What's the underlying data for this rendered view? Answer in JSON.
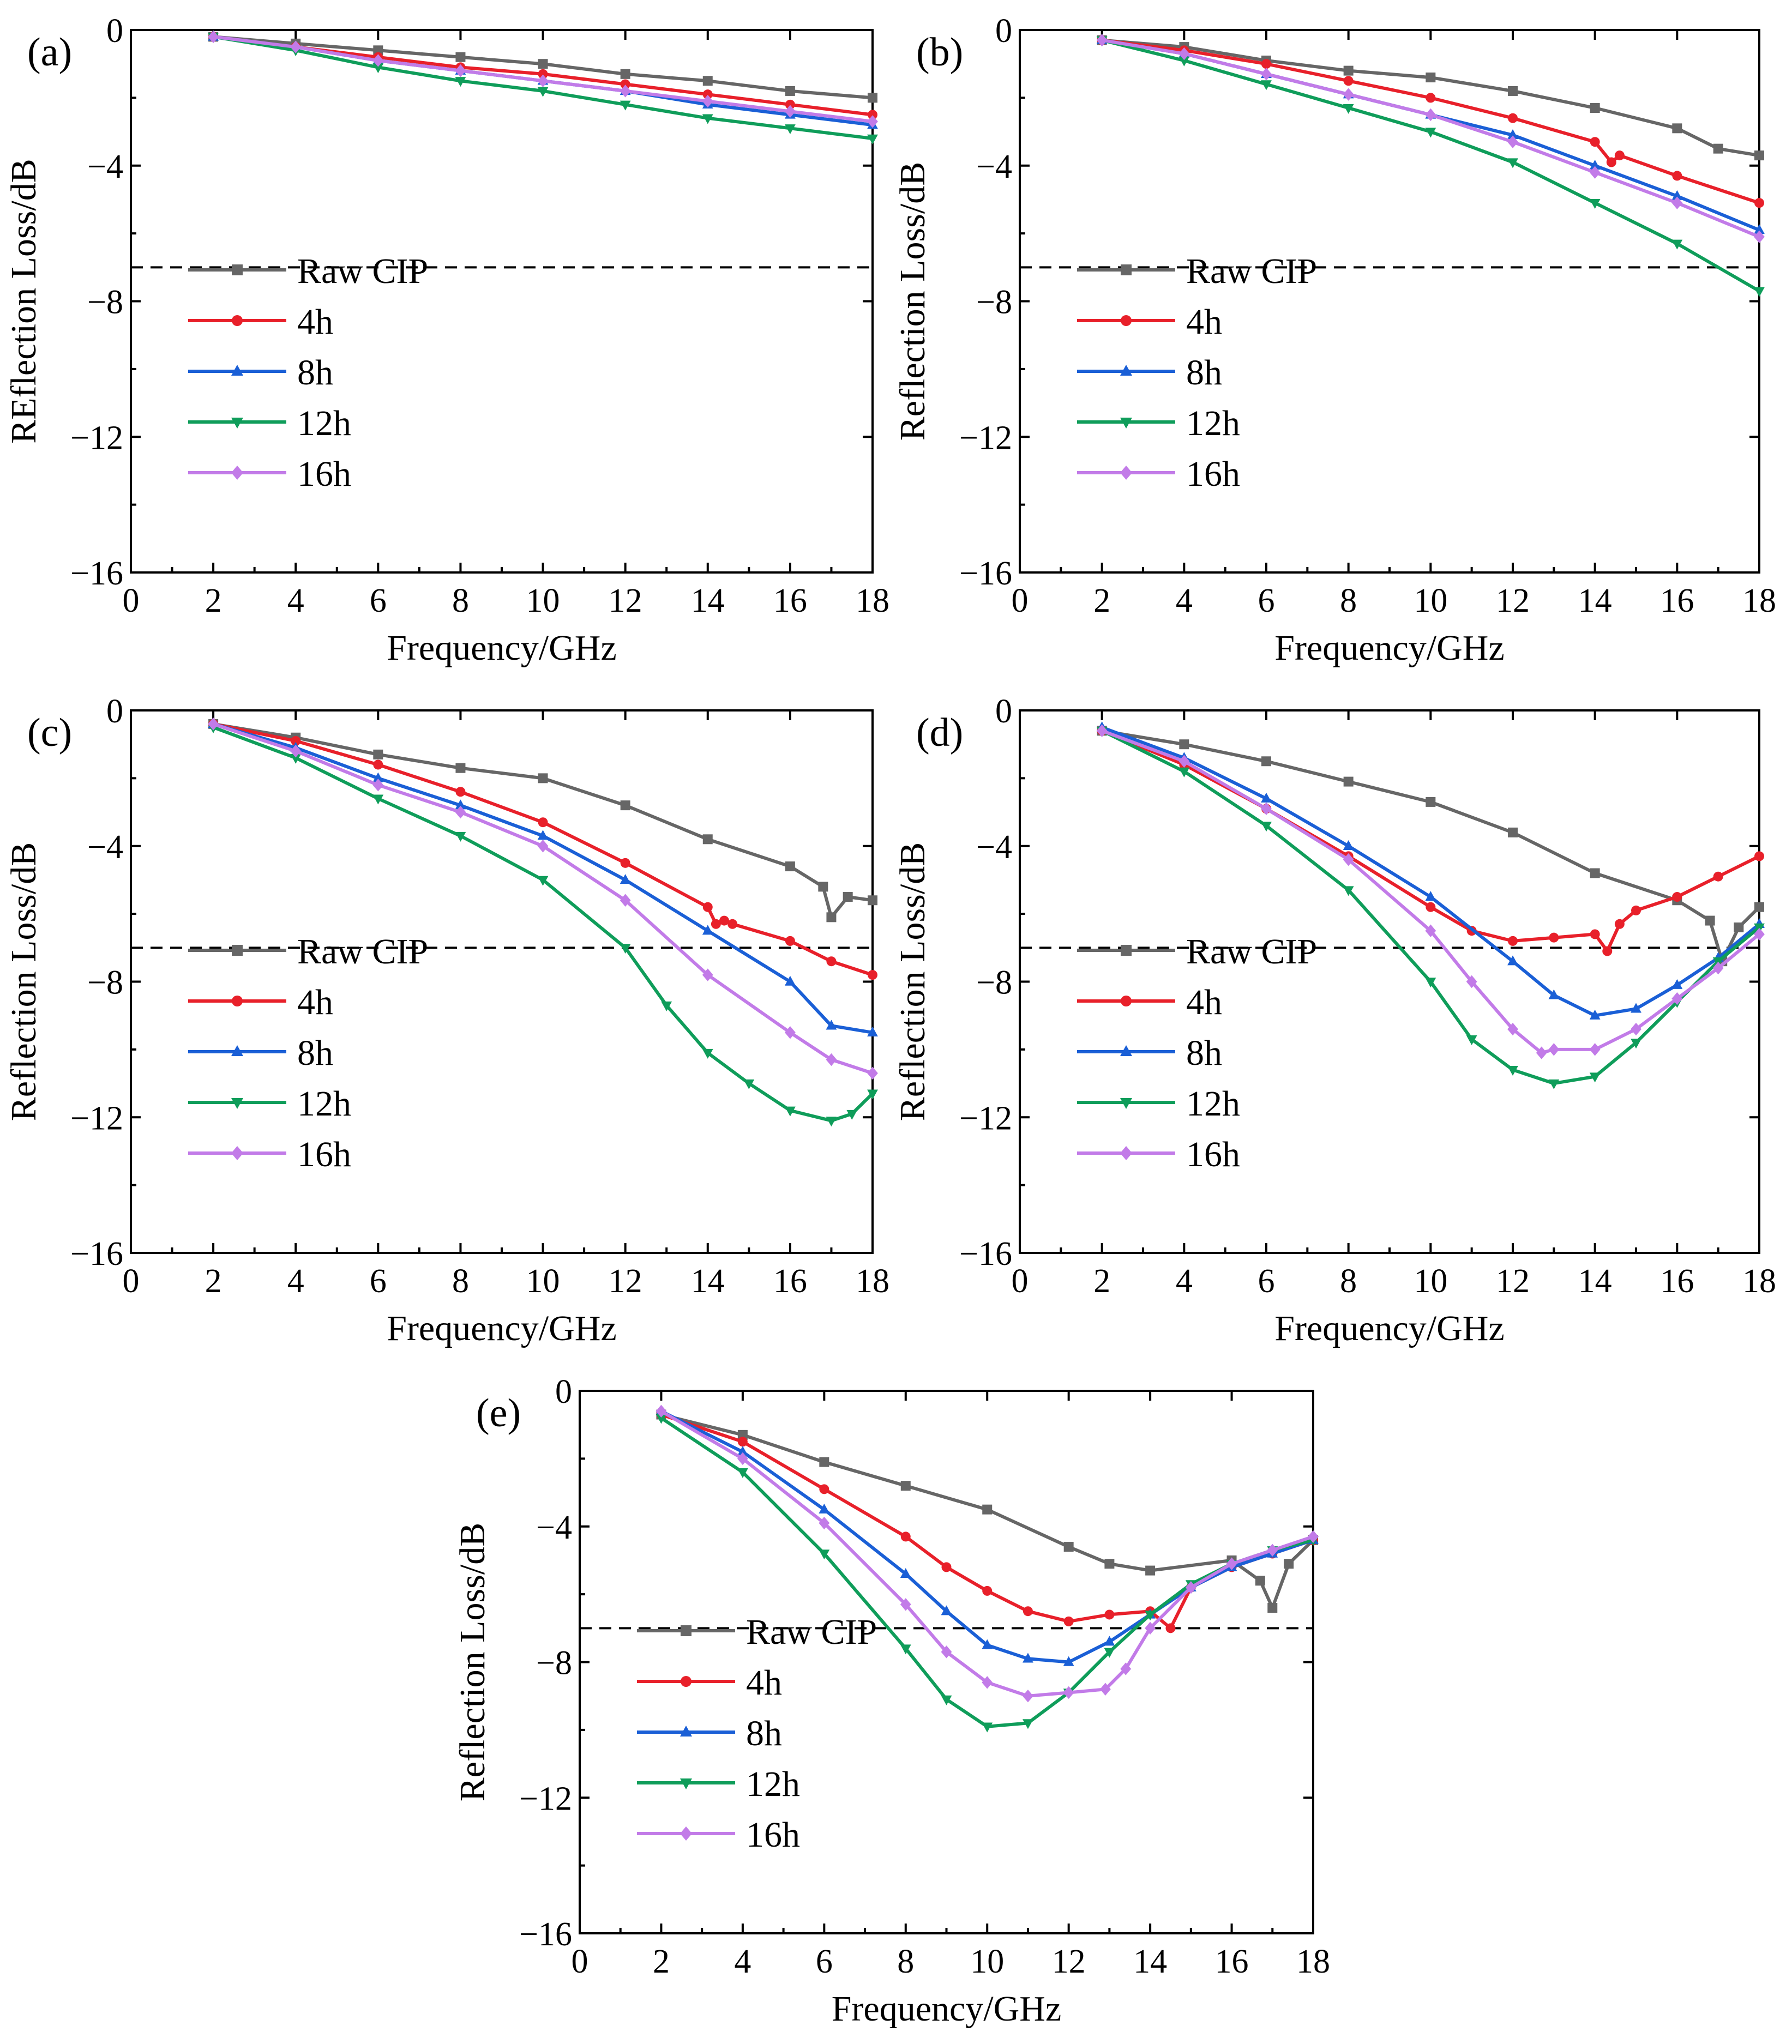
{
  "figure": {
    "reference_level_db": -7,
    "marker_shapes": {
      "raw-cip": "square",
      "4h": "circle",
      "8h": "triangle-up",
      "12h": "triangle-down",
      "16h": "diamond"
    }
  },
  "chart_data": [
    {
      "panel_label": "(a)",
      "type": "line",
      "xlabel": "Frequency/GHz",
      "ylabel": "REflection Loss/dB",
      "xlim": [
        0,
        18
      ],
      "ylim": [
        -16,
        0
      ],
      "xticks": [
        "0",
        "2",
        "4",
        "6",
        "8",
        "10",
        "12",
        "14",
        "16",
        "18"
      ],
      "yticks": [
        "0",
        "−4",
        "−8",
        "−12",
        "−16"
      ],
      "reference_line": -7,
      "legend": [
        "Raw CIP",
        "4h",
        "8h",
        "12h",
        "16h"
      ],
      "series": [
        {
          "name": "Raw CIP",
          "color": "#666666",
          "x": [
            2,
            4,
            6,
            8,
            10,
            12,
            14,
            16,
            18
          ],
          "y": [
            -0.2,
            -0.4,
            -0.6,
            -0.8,
            -1.0,
            -1.3,
            -1.5,
            -1.8,
            -2.0
          ]
        },
        {
          "name": "4h",
          "color": "#e8202a",
          "x": [
            2,
            4,
            6,
            8,
            10,
            12,
            14,
            16,
            18
          ],
          "y": [
            -0.2,
            -0.5,
            -0.8,
            -1.1,
            -1.3,
            -1.6,
            -1.9,
            -2.2,
            -2.5
          ]
        },
        {
          "name": "8h",
          "color": "#1a5fd6",
          "x": [
            2,
            4,
            6,
            8,
            10,
            12,
            14,
            16,
            18
          ],
          "y": [
            -0.2,
            -0.5,
            -0.9,
            -1.2,
            -1.5,
            -1.8,
            -2.2,
            -2.5,
            -2.8
          ]
        },
        {
          "name": "12h",
          "color": "#0f9d5a",
          "x": [
            2,
            4,
            6,
            8,
            10,
            12,
            14,
            16,
            18
          ],
          "y": [
            -0.2,
            -0.6,
            -1.1,
            -1.5,
            -1.8,
            -2.2,
            -2.6,
            -2.9,
            -3.2
          ]
        },
        {
          "name": "16h",
          "color": "#c27be8",
          "x": [
            2,
            4,
            6,
            8,
            10,
            12,
            14,
            16,
            18
          ],
          "y": [
            -0.2,
            -0.5,
            -0.9,
            -1.2,
            -1.5,
            -1.8,
            -2.1,
            -2.4,
            -2.7
          ]
        }
      ]
    },
    {
      "panel_label": "(b)",
      "type": "line",
      "xlabel": "Frequency/GHz",
      "ylabel": "Reflection Loss/dB",
      "xlim": [
        0,
        18
      ],
      "ylim": [
        -16,
        0
      ],
      "xticks": [
        "0",
        "2",
        "4",
        "6",
        "8",
        "10",
        "12",
        "14",
        "16",
        "18"
      ],
      "yticks": [
        "0",
        "−4",
        "−8",
        "−12",
        "−16"
      ],
      "reference_line": -7,
      "legend": [
        "Raw CIP",
        "4h",
        "8h",
        "12h",
        "16h"
      ],
      "series": [
        {
          "name": "Raw CIP",
          "color": "#666666",
          "x": [
            2,
            4,
            6,
            8,
            10,
            12,
            14,
            16,
            17,
            18
          ],
          "y": [
            -0.3,
            -0.5,
            -0.9,
            -1.2,
            -1.4,
            -1.8,
            -2.3,
            -2.9,
            -3.5,
            -3.7
          ]
        },
        {
          "name": "4h",
          "color": "#e8202a",
          "x": [
            2,
            4,
            6,
            8,
            10,
            12,
            14,
            14.4,
            14.6,
            16,
            18
          ],
          "y": [
            -0.3,
            -0.6,
            -1.0,
            -1.5,
            -2.0,
            -2.6,
            -3.3,
            -3.9,
            -3.7,
            -4.3,
            -5.1
          ]
        },
        {
          "name": "8h",
          "color": "#1a5fd6",
          "x": [
            2,
            4,
            6,
            8,
            10,
            12,
            14,
            16,
            18
          ],
          "y": [
            -0.3,
            -0.7,
            -1.3,
            -1.9,
            -2.5,
            -3.1,
            -4.0,
            -4.9,
            -5.9
          ]
        },
        {
          "name": "12h",
          "color": "#0f9d5a",
          "x": [
            2,
            4,
            6,
            8,
            10,
            12,
            14,
            16,
            18
          ],
          "y": [
            -0.3,
            -0.9,
            -1.6,
            -2.3,
            -3.0,
            -3.9,
            -5.1,
            -6.3,
            -7.7
          ]
        },
        {
          "name": "16h",
          "color": "#c27be8",
          "x": [
            2,
            4,
            6,
            8,
            10,
            12,
            14,
            16,
            18
          ],
          "y": [
            -0.3,
            -0.7,
            -1.3,
            -1.9,
            -2.5,
            -3.3,
            -4.2,
            -5.1,
            -6.1
          ]
        }
      ]
    },
    {
      "panel_label": "(c)",
      "type": "line",
      "xlabel": "Frequency/GHz",
      "ylabel": "Reflection Loss/dB",
      "xlim": [
        0,
        18
      ],
      "ylim": [
        -16,
        0
      ],
      "xticks": [
        "0",
        "2",
        "4",
        "6",
        "8",
        "10",
        "12",
        "14",
        "16",
        "18"
      ],
      "yticks": [
        "0",
        "−4",
        "−8",
        "−12",
        "−16"
      ],
      "reference_line": -7,
      "legend": [
        "Raw CIP",
        "4h",
        "8h",
        "12h",
        "16h"
      ],
      "series": [
        {
          "name": "Raw CIP",
          "color": "#666666",
          "x": [
            2,
            4,
            6,
            8,
            10,
            12,
            14,
            16,
            16.8,
            17.0,
            17.4,
            18
          ],
          "y": [
            -0.4,
            -0.8,
            -1.3,
            -1.7,
            -2.0,
            -2.8,
            -3.8,
            -4.6,
            -5.2,
            -6.1,
            -5.5,
            -5.6
          ]
        },
        {
          "name": "4h",
          "color": "#e8202a",
          "x": [
            2,
            4,
            6,
            8,
            10,
            12,
            14,
            14.2,
            14.4,
            14.6,
            16,
            17,
            18
          ],
          "y": [
            -0.4,
            -0.9,
            -1.6,
            -2.4,
            -3.3,
            -4.5,
            -5.8,
            -6.3,
            -6.2,
            -6.3,
            -6.8,
            -7.4,
            -7.8
          ]
        },
        {
          "name": "8h",
          "color": "#1a5fd6",
          "x": [
            2,
            4,
            6,
            8,
            10,
            12,
            14,
            16,
            17,
            18
          ],
          "y": [
            -0.4,
            -1.1,
            -2.0,
            -2.8,
            -3.7,
            -5.0,
            -6.5,
            -8.0,
            -9.3,
            -9.5
          ]
        },
        {
          "name": "12h",
          "color": "#0f9d5a",
          "x": [
            2,
            4,
            6,
            8,
            10,
            12,
            13,
            14,
            15,
            16,
            17,
            17.5,
            18
          ],
          "y": [
            -0.5,
            -1.4,
            -2.6,
            -3.7,
            -5.0,
            -7.0,
            -8.7,
            -10.1,
            -11.0,
            -11.8,
            -12.1,
            -11.9,
            -11.3
          ]
        },
        {
          "name": "16h",
          "color": "#c27be8",
          "x": [
            2,
            4,
            6,
            8,
            10,
            12,
            14,
            16,
            17,
            18
          ],
          "y": [
            -0.4,
            -1.2,
            -2.2,
            -3.0,
            -4.0,
            -5.6,
            -7.8,
            -9.5,
            -10.3,
            -10.7
          ]
        }
      ]
    },
    {
      "panel_label": "(d)",
      "type": "line",
      "xlabel": "Frequency/GHz",
      "ylabel": "Reflection Loss/dB",
      "xlim": [
        0,
        18
      ],
      "ylim": [
        -16,
        0
      ],
      "xticks": [
        "0",
        "2",
        "4",
        "6",
        "8",
        "10",
        "12",
        "14",
        "16",
        "18"
      ],
      "yticks": [
        "0",
        "−4",
        "−8",
        "−12",
        "−16"
      ],
      "reference_line": -7,
      "legend": [
        "Raw CIP",
        "4h",
        "8h",
        "12h",
        "16h"
      ],
      "series": [
        {
          "name": "Raw CIP",
          "color": "#666666",
          "x": [
            2,
            4,
            6,
            8,
            10,
            12,
            14,
            16,
            16.8,
            17.1,
            17.5,
            18
          ],
          "y": [
            -0.6,
            -1.0,
            -1.5,
            -2.1,
            -2.7,
            -3.6,
            -4.8,
            -5.6,
            -6.2,
            -7.4,
            -6.4,
            -5.8
          ]
        },
        {
          "name": "4h",
          "color": "#e8202a",
          "x": [
            2,
            4,
            6,
            8,
            10,
            11,
            12,
            13,
            14,
            14.3,
            14.6,
            15,
            16,
            17,
            18
          ],
          "y": [
            -0.6,
            -1.6,
            -2.9,
            -4.3,
            -5.8,
            -6.5,
            -6.8,
            -6.7,
            -6.6,
            -7.1,
            -6.3,
            -5.9,
            -5.5,
            -4.9,
            -4.3
          ]
        },
        {
          "name": "8h",
          "color": "#1a5fd6",
          "x": [
            2,
            4,
            6,
            8,
            10,
            12,
            13,
            14,
            15,
            16,
            17,
            18
          ],
          "y": [
            -0.5,
            -1.4,
            -2.6,
            -4.0,
            -5.5,
            -7.4,
            -8.4,
            -9.0,
            -8.8,
            -8.1,
            -7.3,
            -6.3
          ]
        },
        {
          "name": "12h",
          "color": "#0f9d5a",
          "x": [
            2,
            4,
            6,
            8,
            10,
            11,
            12,
            13,
            14,
            15,
            16,
            17,
            18
          ],
          "y": [
            -0.6,
            -1.8,
            -3.4,
            -5.3,
            -8.0,
            -9.7,
            -10.6,
            -11.0,
            -10.8,
            -9.8,
            -8.6,
            -7.4,
            -6.4
          ]
        },
        {
          "name": "16h",
          "color": "#c27be8",
          "x": [
            2,
            4,
            6,
            8,
            10,
            11,
            12,
            12.7,
            13,
            14,
            15,
            16,
            17,
            18
          ],
          "y": [
            -0.6,
            -1.5,
            -2.9,
            -4.4,
            -6.5,
            -8.0,
            -9.4,
            -10.1,
            -10.0,
            -10.0,
            -9.4,
            -8.5,
            -7.6,
            -6.6
          ]
        }
      ]
    },
    {
      "panel_label": "(e)",
      "type": "line",
      "xlabel": "Frequency/GHz",
      "ylabel": "Reflection Loss/dB",
      "xlim": [
        0,
        18
      ],
      "ylim": [
        -16,
        0
      ],
      "xticks": [
        "0",
        "2",
        "4",
        "6",
        "8",
        "10",
        "12",
        "14",
        "16",
        "18"
      ],
      "yticks": [
        "0",
        "−4",
        "−8",
        "−12",
        "−16"
      ],
      "reference_line": -7,
      "legend": [
        "Raw CIP",
        "4h",
        "8h",
        "12h",
        "16h"
      ],
      "series": [
        {
          "name": "Raw CIP",
          "color": "#666666",
          "x": [
            2,
            4,
            6,
            8,
            10,
            12,
            13,
            14,
            16,
            16.7,
            17.0,
            17.4,
            18
          ],
          "y": [
            -0.7,
            -1.3,
            -2.1,
            -2.8,
            -3.5,
            -4.6,
            -5.1,
            -5.3,
            -5.0,
            -5.6,
            -6.4,
            -5.1,
            -4.4
          ]
        },
        {
          "name": "4h",
          "color": "#e8202a",
          "x": [
            2,
            4,
            6,
            8,
            9,
            10,
            11,
            12,
            13,
            14,
            14.5,
            15,
            16,
            17,
            18
          ],
          "y": [
            -0.7,
            -1.5,
            -2.9,
            -4.3,
            -5.2,
            -5.9,
            -6.5,
            -6.8,
            -6.6,
            -6.5,
            -7.0,
            -5.8,
            -5.2,
            -4.8,
            -4.4
          ]
        },
        {
          "name": "8h",
          "color": "#1a5fd6",
          "x": [
            2,
            4,
            6,
            8,
            9,
            10,
            11,
            12,
            13,
            14,
            15,
            16,
            17,
            18
          ],
          "y": [
            -0.6,
            -1.8,
            -3.5,
            -5.4,
            -6.5,
            -7.5,
            -7.9,
            -8.0,
            -7.4,
            -6.6,
            -5.8,
            -5.2,
            -4.8,
            -4.4
          ]
        },
        {
          "name": "12h",
          "color": "#0f9d5a",
          "x": [
            2,
            4,
            6,
            8,
            9,
            10,
            11,
            12,
            13,
            14,
            15,
            16,
            17,
            18
          ],
          "y": [
            -0.8,
            -2.4,
            -4.8,
            -7.6,
            -9.1,
            -9.9,
            -9.8,
            -8.9,
            -7.7,
            -6.6,
            -5.7,
            -5.1,
            -4.7,
            -4.4
          ]
        },
        {
          "name": "16h",
          "color": "#c27be8",
          "x": [
            2,
            4,
            6,
            8,
            9,
            10,
            11,
            12,
            12.9,
            13.4,
            14,
            15,
            16,
            17,
            18
          ],
          "y": [
            -0.6,
            -2.0,
            -3.9,
            -6.3,
            -7.7,
            -8.6,
            -9.0,
            -8.9,
            -8.8,
            -8.2,
            -7.0,
            -5.8,
            -5.1,
            -4.7,
            -4.3
          ]
        }
      ]
    }
  ]
}
